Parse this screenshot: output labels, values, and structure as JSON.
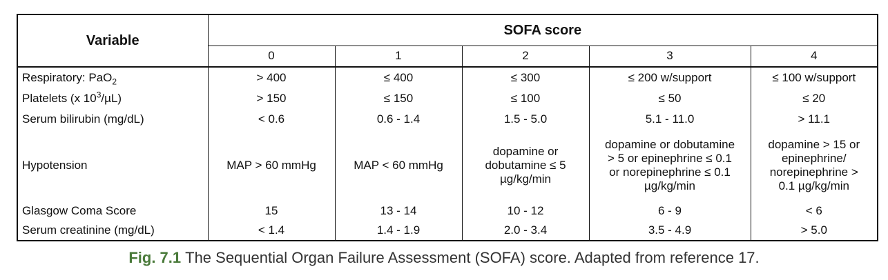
{
  "table": {
    "variable_header": "Variable",
    "score_header": "SOFA score",
    "score_columns": [
      "0",
      "1",
      "2",
      "3",
      "4"
    ],
    "rows": [
      {
        "label": "Respiratory: PaO",
        "label_sub": "2",
        "label_sup": "",
        "label_tail": "",
        "values": [
          "> 400",
          "≤ 400",
          "≤ 300",
          "≤ 200 w/support",
          "≤ 100 w/support"
        ]
      },
      {
        "label": "Platelets (x 10",
        "label_sub": "",
        "label_sup": "3",
        "label_tail": "/µL)",
        "values": [
          "> 150",
          "≤ 150",
          "≤ 100",
          "≤ 50",
          "≤ 20"
        ]
      },
      {
        "label": "Serum bilirubin (mg/dL)",
        "label_sub": "",
        "label_sup": "",
        "label_tail": "",
        "values": [
          "< 0.6",
          "0.6 - 1.4",
          "1.5 - 5.0",
          "5.1 - 11.0",
          "> 11.1"
        ]
      },
      {
        "label": "Hypotension",
        "label_sub": "",
        "label_sup": "",
        "label_tail": "",
        "values": [
          "MAP > 60 mmHg",
          "MAP < 60 mmHg",
          "dopamine or\ndobutamine ≤ 5\nµg/kg/min",
          "dopamine or dobutamine\n> 5 or epinephrine ≤ 0.1\nor norepinephrine ≤ 0.1\nµg/kg/min",
          "dopamine > 15 or\nepinephrine/\nnorepinephrine >\n0.1  µg/kg/min"
        ]
      },
      {
        "label": "Glasgow Coma Score",
        "label_sub": "",
        "label_sup": "",
        "label_tail": "",
        "values": [
          "15",
          "13 - 14",
          "10 - 12",
          "6 - 9",
          "< 6"
        ]
      },
      {
        "label": "Serum creatinine (mg/dL)",
        "label_sub": "",
        "label_sup": "",
        "label_tail": "",
        "values": [
          "< 1.4",
          "1.4 - 1.9",
          "2.0 - 3.4",
          "3.5 - 4.9",
          "> 5.0"
        ]
      }
    ]
  },
  "caption": {
    "label": "Fig. 7.1",
    "text": "The Sequential Organ Failure Assessment (SOFA) score. Adapted from reference 17.",
    "label_color": "#4a7a3a"
  }
}
